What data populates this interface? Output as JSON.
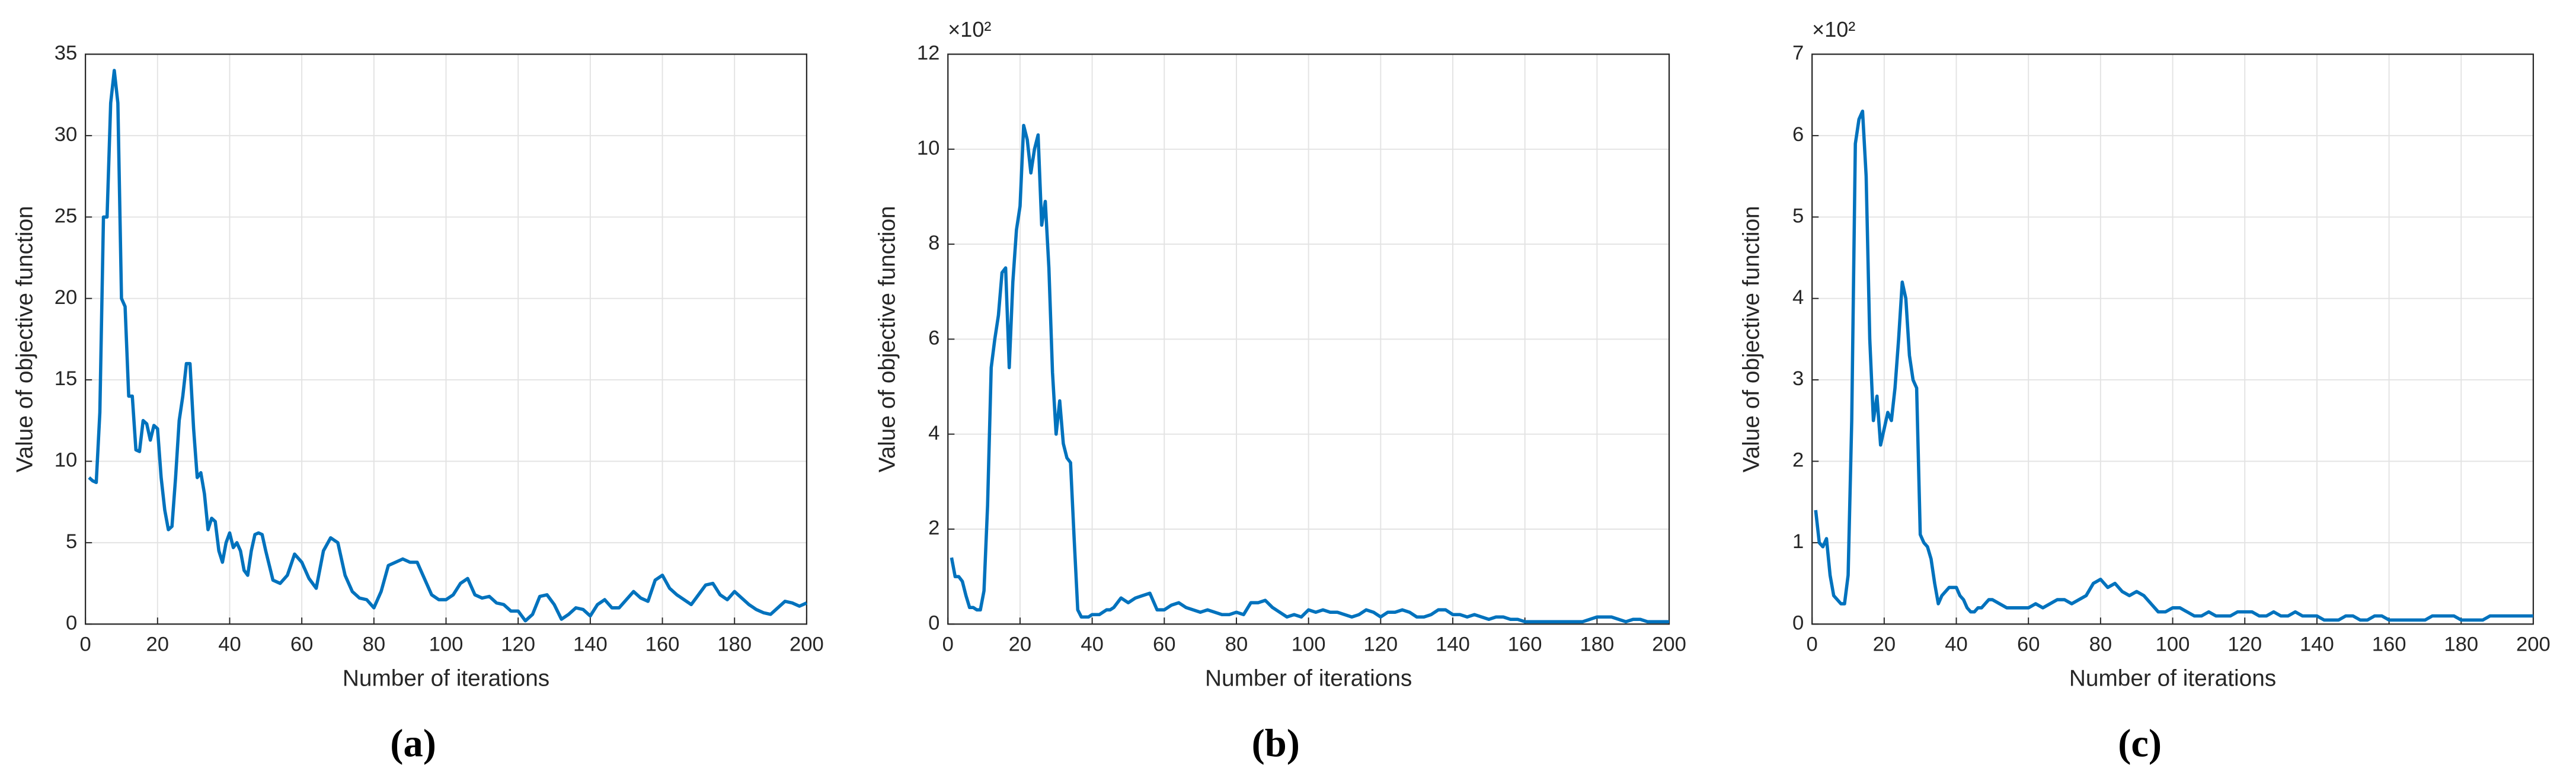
{
  "chart_data": [
    {
      "type": "line",
      "caption": "(a)",
      "x_label": "Number of iterations",
      "y_label": "Value of objective function",
      "color": "#0072bd",
      "grid": true,
      "xlim": [
        0,
        200
      ],
      "xticks": [
        0,
        20,
        40,
        60,
        80,
        100,
        120,
        140,
        160,
        180,
        200
      ],
      "ylim": [
        0,
        35
      ],
      "yticks": [
        0,
        5,
        10,
        15,
        20,
        25,
        30,
        35
      ],
      "x": [
        1,
        2,
        3,
        4,
        5,
        6,
        7,
        8,
        9,
        10,
        11,
        12,
        13,
        14,
        15,
        16,
        17,
        18,
        19,
        20,
        21,
        22,
        23,
        24,
        25,
        26,
        27,
        28,
        29,
        30,
        31,
        32,
        33,
        34,
        35,
        36,
        37,
        38,
        39,
        40,
        41,
        42,
        43,
        44,
        45,
        46,
        47,
        48,
        49,
        50,
        52,
        54,
        56,
        58,
        60,
        62,
        64,
        66,
        68,
        70,
        72,
        74,
        76,
        78,
        80,
        82,
        84,
        86,
        88,
        90,
        92,
        94,
        96,
        98,
        100,
        102,
        104,
        106,
        108,
        110,
        112,
        114,
        116,
        118,
        120,
        122,
        124,
        126,
        128,
        130,
        132,
        134,
        136,
        138,
        140,
        142,
        144,
        146,
        148,
        150,
        152,
        154,
        156,
        158,
        160,
        162,
        164,
        166,
        168,
        170,
        172,
        174,
        176,
        178,
        180,
        182,
        184,
        186,
        188,
        190,
        192,
        194,
        196,
        198,
        200
      ],
      "values": [
        9,
        8.8,
        8.7,
        13,
        25,
        25,
        32,
        34,
        32,
        20,
        19.5,
        14,
        14,
        10.7,
        10.6,
        12.5,
        12.3,
        11.3,
        12.2,
        12,
        9,
        7,
        5.8,
        6,
        9,
        12.5,
        14,
        16,
        16,
        12,
        9,
        9.3,
        8,
        5.8,
        6.5,
        6.3,
        4.5,
        3.8,
        5,
        5.6,
        4.7,
        5,
        4.5,
        3.3,
        3,
        4.5,
        5.5,
        5.6,
        5.5,
        4.5,
        2.7,
        2.5,
        3,
        4.3,
        3.8,
        2.8,
        2.2,
        4.5,
        5.3,
        5,
        3,
        2,
        1.6,
        1.5,
        1,
        2,
        3.6,
        3.8,
        4,
        3.8,
        3.8,
        2.8,
        1.8,
        1.5,
        1.5,
        1.8,
        2.5,
        2.8,
        1.8,
        1.6,
        1.7,
        1.3,
        1.2,
        0.8,
        0.8,
        0.2,
        0.6,
        1.7,
        1.8,
        1.2,
        0.3,
        0.6,
        1,
        0.9,
        0.5,
        1.2,
        1.5,
        1,
        1,
        1.5,
        2,
        1.6,
        1.4,
        2.7,
        3,
        2.2,
        1.8,
        1.5,
        1.2,
        1.8,
        2.4,
        2.5,
        1.8,
        1.5,
        2,
        1.6,
        1.2,
        0.9,
        0.7,
        0.6,
        1,
        1.4,
        1.3,
        1.1,
        1.3
      ]
    },
    {
      "type": "line",
      "caption": "(b)",
      "x_label": "Number of iterations",
      "y_label": "Value of objective function",
      "y_exponent_label": "×10²",
      "color": "#0072bd",
      "grid": true,
      "xlim": [
        0,
        200
      ],
      "xticks": [
        0,
        20,
        40,
        60,
        80,
        100,
        120,
        140,
        160,
        180,
        200
      ],
      "ylim": [
        0,
        12
      ],
      "yticks": [
        0,
        2,
        4,
        6,
        8,
        10,
        12
      ],
      "x": [
        1,
        2,
        3,
        4,
        5,
        6,
        7,
        8,
        9,
        10,
        11,
        12,
        13,
        14,
        15,
        16,
        17,
        18,
        19,
        20,
        21,
        22,
        23,
        24,
        25,
        26,
        27,
        28,
        29,
        30,
        31,
        32,
        33,
        34,
        35,
        36,
        37,
        38,
        39,
        40,
        41,
        42,
        43,
        44,
        45,
        46,
        47,
        48,
        49,
        50,
        52,
        54,
        56,
        58,
        60,
        62,
        64,
        66,
        68,
        70,
        72,
        74,
        76,
        78,
        80,
        82,
        84,
        86,
        88,
        90,
        92,
        94,
        96,
        98,
        100,
        102,
        104,
        106,
        108,
        110,
        112,
        114,
        116,
        118,
        120,
        122,
        124,
        126,
        128,
        130,
        132,
        134,
        136,
        138,
        140,
        142,
        144,
        146,
        148,
        150,
        152,
        154,
        156,
        158,
        160,
        162,
        164,
        166,
        168,
        170,
        172,
        174,
        176,
        178,
        180,
        182,
        184,
        186,
        188,
        190,
        192,
        194,
        196,
        198,
        200
      ],
      "values": [
        1.4,
        1.0,
        1.0,
        0.9,
        0.6,
        0.35,
        0.35,
        0.3,
        0.3,
        0.7,
        2.5,
        5.4,
        6,
        6.5,
        7.4,
        7.5,
        5.4,
        7.2,
        8.3,
        8.8,
        10.5,
        10.2,
        9.5,
        10,
        10.3,
        8.4,
        8.9,
        7.5,
        5.3,
        4,
        4.7,
        3.8,
        3.5,
        3.4,
        1.8,
        0.3,
        0.15,
        0.15,
        0.15,
        0.2,
        0.2,
        0.2,
        0.25,
        0.3,
        0.3,
        0.35,
        0.45,
        0.55,
        0.5,
        0.45,
        0.55,
        0.6,
        0.65,
        0.3,
        0.3,
        0.4,
        0.45,
        0.35,
        0.3,
        0.25,
        0.3,
        0.25,
        0.2,
        0.2,
        0.25,
        0.2,
        0.45,
        0.45,
        0.5,
        0.35,
        0.25,
        0.15,
        0.2,
        0.15,
        0.3,
        0.25,
        0.3,
        0.25,
        0.25,
        0.2,
        0.15,
        0.2,
        0.3,
        0.25,
        0.15,
        0.25,
        0.25,
        0.3,
        0.25,
        0.15,
        0.15,
        0.2,
        0.3,
        0.3,
        0.2,
        0.2,
        0.15,
        0.2,
        0.15,
        0.1,
        0.15,
        0.15,
        0.1,
        0.1,
        0.05,
        0.05,
        0.05,
        0.05,
        0.05,
        0.05,
        0.05,
        0.05,
        0.05,
        0.1,
        0.15,
        0.15,
        0.15,
        0.1,
        0.05,
        0.1,
        0.1,
        0.05,
        0.05,
        0.05,
        0.05
      ]
    },
    {
      "type": "line",
      "caption": "(c)",
      "x_label": "Number of iterations",
      "y_label": "Value of objective function",
      "y_exponent_label": "×10²",
      "color": "#0072bd",
      "grid": true,
      "xlim": [
        0,
        200
      ],
      "xticks": [
        0,
        20,
        40,
        60,
        80,
        100,
        120,
        140,
        160,
        180,
        200
      ],
      "ylim": [
        0,
        7
      ],
      "yticks": [
        0,
        1,
        2,
        3,
        4,
        5,
        6,
        7
      ],
      "x": [
        1,
        2,
        3,
        4,
        5,
        6,
        7,
        8,
        9,
        10,
        11,
        12,
        13,
        14,
        15,
        16,
        17,
        18,
        19,
        20,
        21,
        22,
        23,
        24,
        25,
        26,
        27,
        28,
        29,
        30,
        31,
        32,
        33,
        34,
        35,
        36,
        37,
        38,
        39,
        40,
        41,
        42,
        43,
        44,
        45,
        46,
        47,
        48,
        49,
        50,
        52,
        54,
        56,
        58,
        60,
        62,
        64,
        66,
        68,
        70,
        72,
        74,
        76,
        78,
        80,
        82,
        84,
        86,
        88,
        90,
        92,
        94,
        96,
        98,
        100,
        102,
        104,
        106,
        108,
        110,
        112,
        114,
        116,
        118,
        120,
        122,
        124,
        126,
        128,
        130,
        132,
        134,
        136,
        138,
        140,
        142,
        144,
        146,
        148,
        150,
        152,
        154,
        156,
        158,
        160,
        162,
        164,
        166,
        168,
        170,
        172,
        174,
        176,
        178,
        180,
        182,
        184,
        186,
        188,
        190,
        192,
        194,
        196,
        198,
        200
      ],
      "values": [
        1.4,
        1.0,
        0.95,
        1.05,
        0.6,
        0.35,
        0.3,
        0.25,
        0.25,
        0.6,
        2.5,
        5.9,
        6.2,
        6.3,
        5.5,
        3.5,
        2.5,
        2.8,
        2.2,
        2.4,
        2.6,
        2.5,
        2.9,
        3.5,
        4.2,
        4,
        3.3,
        3,
        2.9,
        1.1,
        1.0,
        0.95,
        0.8,
        0.5,
        0.25,
        0.35,
        0.4,
        0.45,
        0.45,
        0.45,
        0.35,
        0.3,
        0.2,
        0.15,
        0.15,
        0.2,
        0.2,
        0.25,
        0.3,
        0.3,
        0.25,
        0.2,
        0.2,
        0.2,
        0.2,
        0.25,
        0.2,
        0.25,
        0.3,
        0.3,
        0.25,
        0.3,
        0.35,
        0.5,
        0.55,
        0.45,
        0.5,
        0.4,
        0.35,
        0.4,
        0.35,
        0.25,
        0.15,
        0.15,
        0.2,
        0.2,
        0.15,
        0.1,
        0.1,
        0.15,
        0.1,
        0.1,
        0.1,
        0.15,
        0.15,
        0.15,
        0.1,
        0.1,
        0.15,
        0.1,
        0.1,
        0.15,
        0.1,
        0.1,
        0.1,
        0.05,
        0.05,
        0.05,
        0.1,
        0.1,
        0.05,
        0.05,
        0.1,
        0.1,
        0.05,
        0.05,
        0.05,
        0.05,
        0.05,
        0.05,
        0.1,
        0.1,
        0.1,
        0.1,
        0.05,
        0.05,
        0.05,
        0.05,
        0.1,
        0.1,
        0.1,
        0.1,
        0.1,
        0.1,
        0.1
      ]
    }
  ]
}
